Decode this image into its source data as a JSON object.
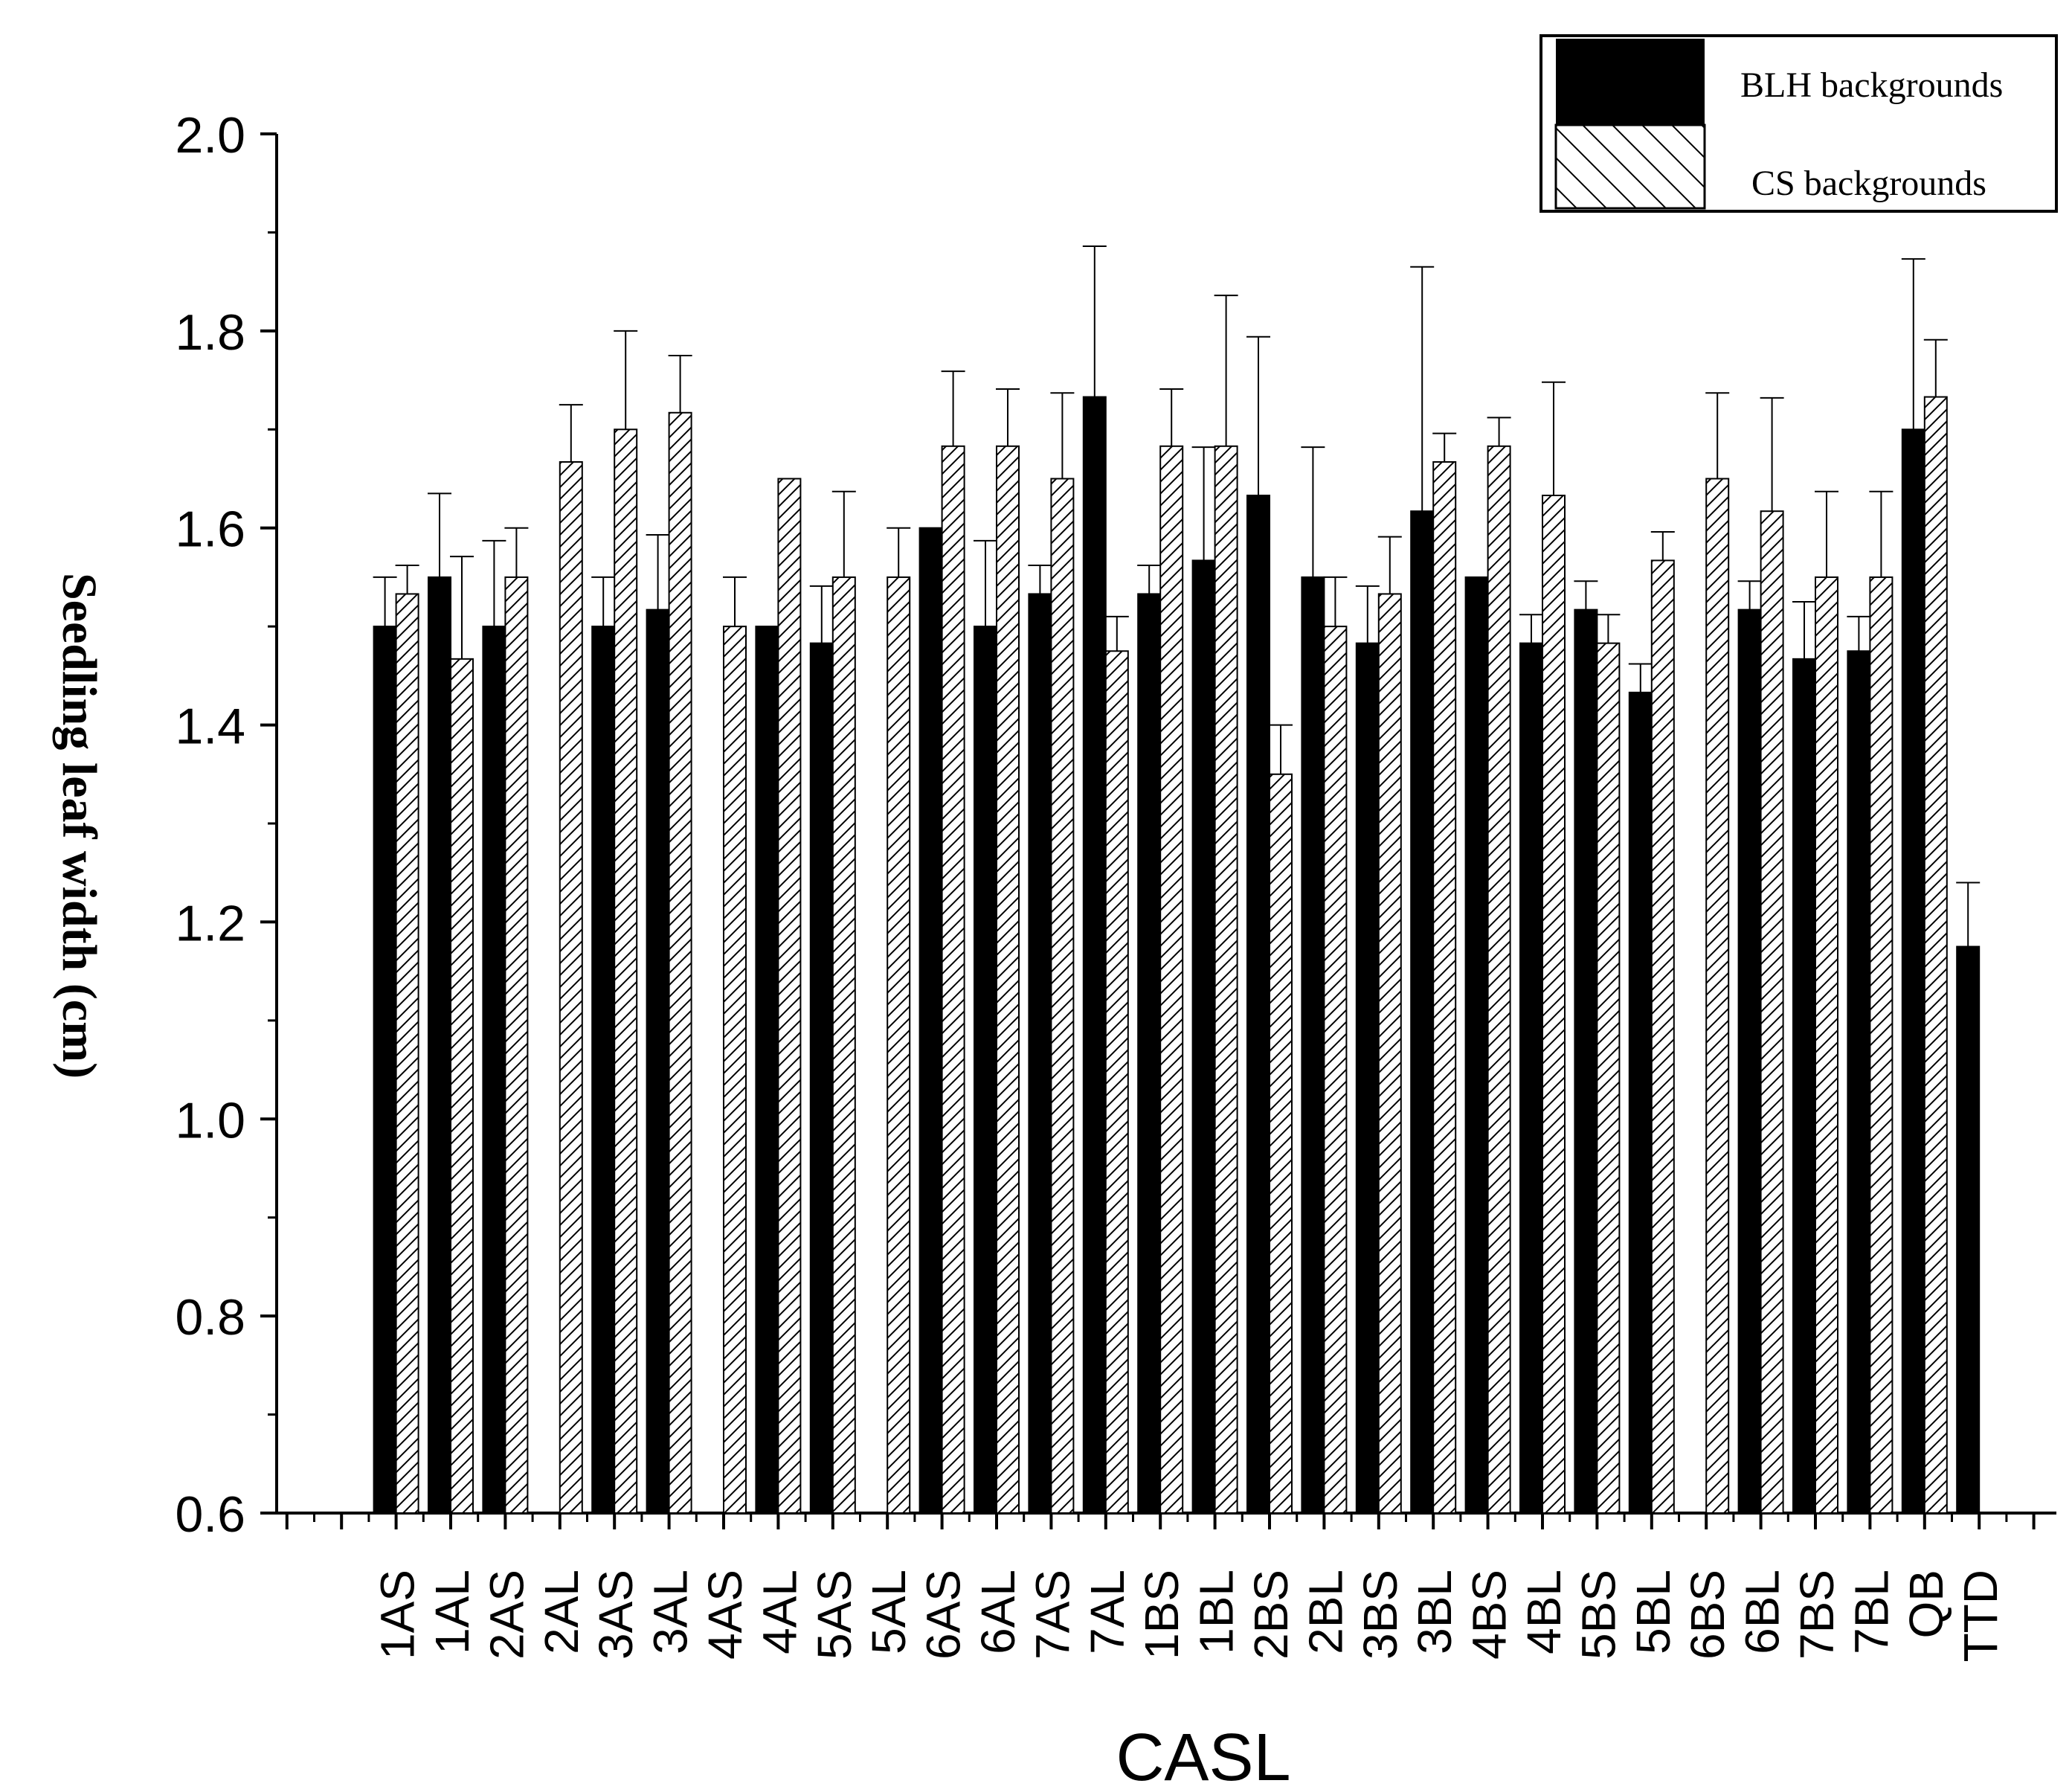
{
  "chart_data": {
    "type": "bar",
    "xlabel": "CASL",
    "ylabel": "Seedling leaf width (cm)",
    "ylim": [
      0.6,
      2.0
    ],
    "yticks": [
      "0.6",
      "0.8",
      "1.0",
      "1.2",
      "1.4",
      "1.6",
      "1.8",
      "2.0"
    ],
    "grid": false,
    "legend_position": "top-right",
    "categories": [
      "1AS",
      "1AL",
      "2AS",
      "2AL",
      "3AS",
      "3AL",
      "4AS",
      "4AL",
      "5AS",
      "5AL",
      "6AS",
      "6AL",
      "7AS",
      "7AL",
      "1BS",
      "1BL",
      "2BS",
      "2BL",
      "3BS",
      "3BL",
      "4BS",
      "4BL",
      "5BS",
      "5BL",
      "6BS",
      "6BL",
      "7BS",
      "7BL",
      "QB",
      "TTD"
    ],
    "series": [
      {
        "name": "BLH backgrounds",
        "fill": "#000000",
        "pattern": "solid",
        "values": [
          1.5,
          1.55,
          1.5,
          null,
          1.5,
          1.517,
          null,
          1.5,
          1.483,
          null,
          1.6,
          1.5,
          1.533,
          1.733,
          1.533,
          1.567,
          1.633,
          1.55,
          1.483,
          1.617,
          1.55,
          1.483,
          1.517,
          1.433,
          null,
          1.517,
          1.467,
          1.475,
          1.7,
          1.175
        ],
        "errors": [
          0.05,
          0.085,
          0.087,
          null,
          0.05,
          0.076,
          null,
          0,
          0.058,
          null,
          0,
          0.087,
          0.029,
          0.153,
          0.029,
          0.115,
          0.161,
          0.132,
          0.058,
          0.248,
          0,
          0.029,
          0.029,
          0.029,
          null,
          0.029,
          0.058,
          0.035,
          0.173,
          0.065
        ]
      },
      {
        "name": "CS backgrounds",
        "fill": "#ffffff",
        "pattern": "diagonal-hatch",
        "values": [
          1.533,
          1.467,
          1.55,
          1.667,
          1.7,
          1.717,
          1.5,
          1.65,
          1.55,
          1.55,
          1.683,
          1.683,
          1.65,
          1.475,
          1.683,
          1.683,
          1.35,
          1.5,
          1.533,
          1.667,
          1.683,
          1.633,
          1.483,
          1.567,
          1.65,
          1.617,
          1.55,
          1.55,
          1.733,
          null
        ],
        "errors": [
          0.029,
          0.104,
          0.05,
          0.058,
          0.1,
          0.058,
          0.05,
          0,
          0.087,
          0.05,
          0.076,
          0.058,
          0.087,
          0.035,
          0.058,
          0.153,
          0.05,
          0.05,
          0.058,
          0.029,
          0.029,
          0.115,
          0.029,
          0.029,
          0.087,
          0.115,
          0.087,
          0.087,
          0.058,
          null
        ]
      }
    ]
  }
}
